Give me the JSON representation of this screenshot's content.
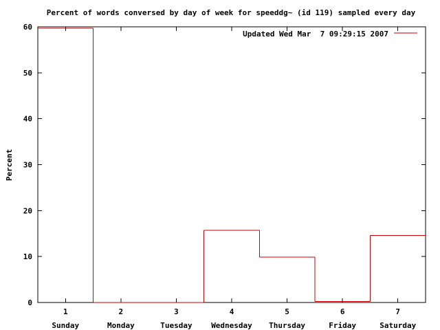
{
  "chart_data": {
    "type": "bar",
    "title": "Percent of words conversed by day of week for speeddg~ (id 119) sampled every day",
    "xlabel": "",
    "ylabel": "Percent",
    "x": [
      1,
      2,
      3,
      4,
      5,
      6,
      7
    ],
    "x_tick_labels": [
      "1",
      "2",
      "3",
      "4",
      "5",
      "6",
      "7"
    ],
    "categories": [
      "Sunday",
      "Monday",
      "Tuesday",
      "Wednesday",
      "Thursday",
      "Friday",
      "Saturday"
    ],
    "xlim": [
      0.5,
      7.5
    ],
    "ylim": [
      0,
      60
    ],
    "y_ticks": [
      0,
      10,
      20,
      30,
      40,
      50,
      60
    ],
    "grid": false,
    "legend_position": "top-right",
    "series": [
      {
        "name": "Updated Wed Mar  7 09:29:15 2007",
        "color": "#cc0000",
        "style": "steps",
        "values": [
          59.7,
          0,
          0,
          15.7,
          9.9,
          0.2,
          14.6
        ]
      }
    ]
  }
}
